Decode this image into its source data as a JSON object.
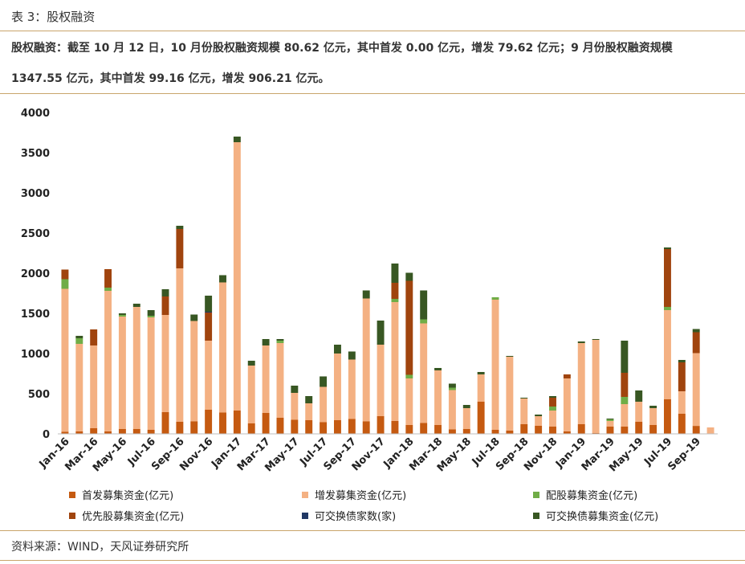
{
  "caption": "表 3：股权融资",
  "summary_line1": "股权融资：截至 10 月 12 日，10 月份股权融资规模 80.62 亿元，其中首发 0.00 亿元，增发 79.62 亿元；9 月份股权融资规模",
  "summary_line2": "1347.55 亿元，其中首发 99.16 亿元，增发 906.21 亿元。",
  "source": "资料来源：WIND，天风证券研究所",
  "colors": {
    "ipo": "#c55a11",
    "additional": "#f4b183",
    "rights": "#70ad47",
    "preferred": "#a0440e",
    "exchangeable_count": "#203864",
    "exchangeable": "#385723"
  },
  "chart_data": {
    "type": "bar",
    "stacked": true,
    "ylim": [
      0,
      4000
    ],
    "yticks": [
      0,
      500,
      1000,
      1500,
      2000,
      2500,
      3000,
      3500,
      4000
    ],
    "xtick_labels": [
      "Jan-16",
      "Mar-16",
      "May-16",
      "Jul-16",
      "Sep-16",
      "Nov-16",
      "Jan-17",
      "Mar-17",
      "May-17",
      "Jul-17",
      "Sep-17",
      "Nov-17",
      "Jan-18",
      "Mar-18",
      "May-18",
      "Jul-18",
      "Sep-18",
      "Nov-18",
      "Jan-19",
      "Mar-19",
      "May-19",
      "Jul-19",
      "Sep-19"
    ],
    "categories": [
      "Jan-16",
      "Feb-16",
      "Mar-16",
      "Apr-16",
      "May-16",
      "Jun-16",
      "Jul-16",
      "Aug-16",
      "Sep-16",
      "Oct-16",
      "Nov-16",
      "Dec-16",
      "Jan-17",
      "Feb-17",
      "Mar-17",
      "Apr-17",
      "May-17",
      "Jun-17",
      "Jul-17",
      "Aug-17",
      "Sep-17",
      "Oct-17",
      "Nov-17",
      "Dec-17",
      "Jan-18",
      "Feb-18",
      "Mar-18",
      "Apr-18",
      "May-18",
      "Jun-18",
      "Jul-18",
      "Aug-18",
      "Sep-18",
      "Oct-18",
      "Nov-18",
      "Dec-18",
      "Jan-19",
      "Feb-19",
      "Mar-19",
      "Apr-19",
      "May-19",
      "Jun-19",
      "Jul-19",
      "Aug-19",
      "Sep-19",
      "Oct-19"
    ],
    "legend_placement": "bottom",
    "series": [
      {
        "name": "首发募集资金(亿元)",
        "color_key": "ipo",
        "values": [
          25,
          30,
          70,
          30,
          60,
          60,
          50,
          270,
          150,
          155,
          300,
          265,
          290,
          130,
          260,
          200,
          175,
          170,
          145,
          170,
          185,
          155,
          220,
          160,
          110,
          135,
          110,
          55,
          60,
          400,
          50,
          40,
          120,
          100,
          90,
          30,
          120,
          10,
          90,
          90,
          150,
          110,
          430,
          250,
          99,
          0
        ]
      },
      {
        "name": "增发募集资金(亿元)",
        "color_key": "additional",
        "values": [
          1780,
          1090,
          1030,
          1750,
          1400,
          1520,
          1400,
          1210,
          1910,
          1250,
          860,
          1620,
          3340,
          720,
          840,
          930,
          335,
          210,
          440,
          830,
          740,
          1530,
          890,
          1480,
          580,
          1240,
          680,
          490,
          260,
          340,
          1620,
          920,
          320,
          120,
          200,
          660,
          1010,
          1160,
          70,
          280,
          250,
          210,
          1110,
          280,
          906,
          80
        ]
      },
      {
        "name": "配股募集资金(亿元)",
        "color_key": "rights",
        "values": [
          120,
          70,
          0,
          40,
          20,
          0,
          20,
          0,
          0,
          0,
          0,
          0,
          0,
          0,
          0,
          30,
          0,
          0,
          0,
          0,
          0,
          0,
          0,
          40,
          45,
          50,
          0,
          30,
          0,
          0,
          30,
          0,
          0,
          0,
          50,
          0,
          0,
          0,
          20,
          90,
          0,
          0,
          40,
          0,
          0,
          0
        ]
      },
      {
        "name": "优先股募集资金(亿元)",
        "color_key": "preferred",
        "values": [
          120,
          0,
          200,
          230,
          0,
          0,
          0,
          230,
          490,
          0,
          350,
          0,
          0,
          0,
          0,
          0,
          0,
          0,
          0,
          0,
          0,
          0,
          0,
          200,
          1170,
          0,
          0,
          0,
          0,
          0,
          0,
          0,
          0,
          0,
          110,
          50,
          0,
          0,
          0,
          300,
          0,
          0,
          720,
          360,
          260,
          0
        ]
      },
      {
        "name": "可交换债家数(家)",
        "color_key": "exchangeable_count",
        "values": [
          0,
          0,
          0,
          0,
          0,
          0,
          0,
          0,
          0,
          0,
          10,
          0,
          0,
          0,
          0,
          0,
          0,
          0,
          0,
          0,
          0,
          0,
          0,
          0,
          0,
          0,
          0,
          0,
          0,
          0,
          0,
          0,
          0,
          0,
          0,
          0,
          0,
          0,
          0,
          0,
          0,
          0,
          0,
          0,
          0,
          0
        ]
      },
      {
        "name": "可交换债募集资金(亿元)",
        "color_key": "exchangeable",
        "values": [
          0,
          30,
          0,
          0,
          20,
          40,
          70,
          90,
          40,
          80,
          200,
          90,
          70,
          60,
          80,
          20,
          90,
          90,
          130,
          110,
          100,
          100,
          300,
          240,
          100,
          360,
          30,
          50,
          40,
          30,
          0,
          10,
          10,
          20,
          20,
          0,
          20,
          10,
          10,
          400,
          140,
          30,
          20,
          30,
          40,
          0
        ]
      }
    ]
  }
}
